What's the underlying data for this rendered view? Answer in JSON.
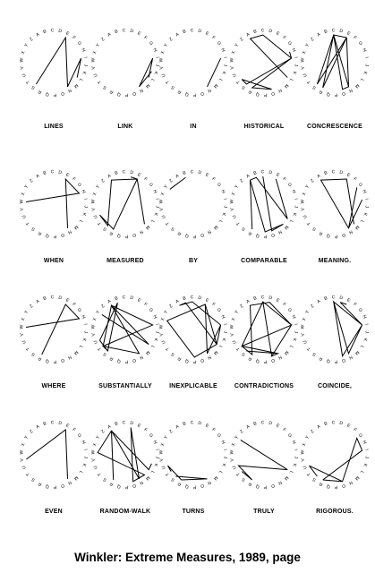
{
  "alphabet": "ABCDEFGHIJKLMNOPQRSTUVWXYZ",
  "caption": "Winkler: Extreme Measures, 1989, page",
  "poems": [
    {
      "word": "LINES",
      "letters": "LINES"
    },
    {
      "word": "LINK",
      "letters": "LINK"
    },
    {
      "word": "IN",
      "letters": "IN"
    },
    {
      "word": "HISTORICAL",
      "letters": "HISTORICAL"
    },
    {
      "word": "CONCRESCENCE",
      "letters": "CONCRESCENCE"
    },
    {
      "word": "WHEN",
      "letters": "WHEN"
    },
    {
      "word": "MEASURED",
      "letters": "MEASURED"
    },
    {
      "word": "BY",
      "letters": "BY"
    },
    {
      "word": "COMPARABLE",
      "letters": "COMPARABLE"
    },
    {
      "word": "MEANING.",
      "letters": "MEANING"
    },
    {
      "word": "WHERE",
      "letters": "WHERE"
    },
    {
      "word": "SUBSTANTIALLY",
      "letters": "SUBSTANTIALLY"
    },
    {
      "word": "INEXPLICABLE",
      "letters": "INEXPLICABLE"
    },
    {
      "word": "CONTRADICTIONS",
      "letters": "CONTRADICTIONS"
    },
    {
      "word": "COINCIDE,",
      "letters": "COINCIDE"
    },
    {
      "word": "EVEN",
      "letters": "EVEN"
    },
    {
      "word": "RANDOM-WALK",
      "letters": "RANDOMWALK"
    },
    {
      "word": "TURNS",
      "letters": "TURNS"
    },
    {
      "word": "TRULY",
      "letters": "TRULY"
    },
    {
      "word": "RIGOROUS.",
      "letters": "RIGOROUS"
    }
  ]
}
